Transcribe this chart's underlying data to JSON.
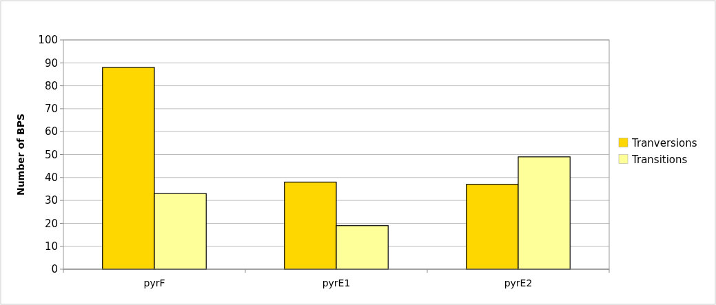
{
  "chart_data": {
    "type": "bar",
    "ylabel": "Number of BPS",
    "categories": [
      "pyrF",
      "pyrE1",
      "pyrE2"
    ],
    "series": [
      {
        "name": "Tranversions",
        "color": "#ffd700",
        "values": [
          88,
          38,
          37
        ]
      },
      {
        "name": "Transitions",
        "color": "#ffff99",
        "values": [
          33,
          19,
          49
        ]
      }
    ],
    "ylim": [
      0,
      100
    ],
    "yticks": [
      0,
      10,
      20,
      30,
      40,
      50,
      60,
      70,
      80,
      90,
      100
    ],
    "grid": "y",
    "legend": "right"
  }
}
